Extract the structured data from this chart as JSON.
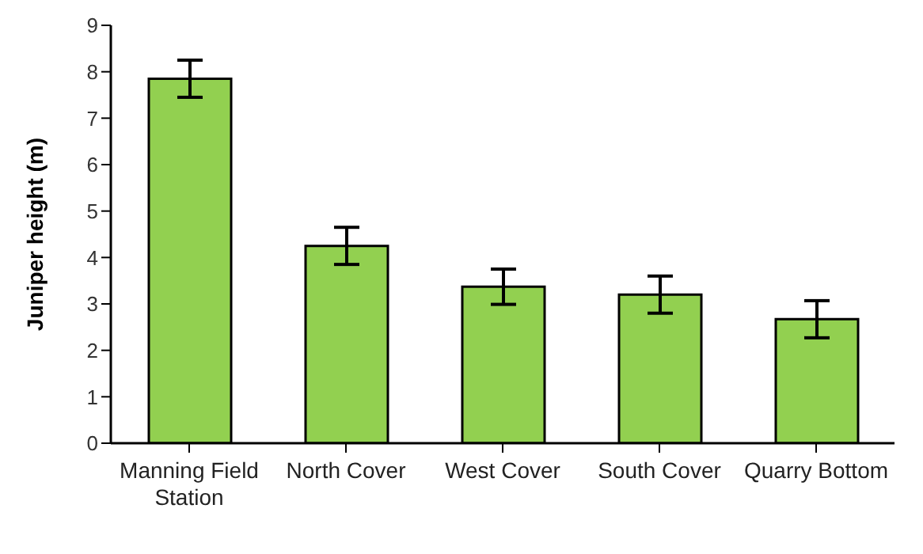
{
  "chart_data": {
    "type": "bar",
    "ylabel": "Juniper height (m)",
    "categories": [
      "Manning Field Station",
      "North Cover",
      "West Cover",
      "South Cover",
      "Quarry Bottom"
    ],
    "values": [
      7.85,
      4.25,
      3.37,
      3.2,
      2.67
    ],
    "errors": [
      0.4,
      0.4,
      0.38,
      0.4,
      0.4
    ],
    "color": "#92d050",
    "ylim": [
      0,
      9
    ],
    "yticks": [
      0,
      1,
      2,
      3,
      4,
      5,
      6,
      7,
      8,
      9
    ],
    "grid": false,
    "legend": false
  }
}
